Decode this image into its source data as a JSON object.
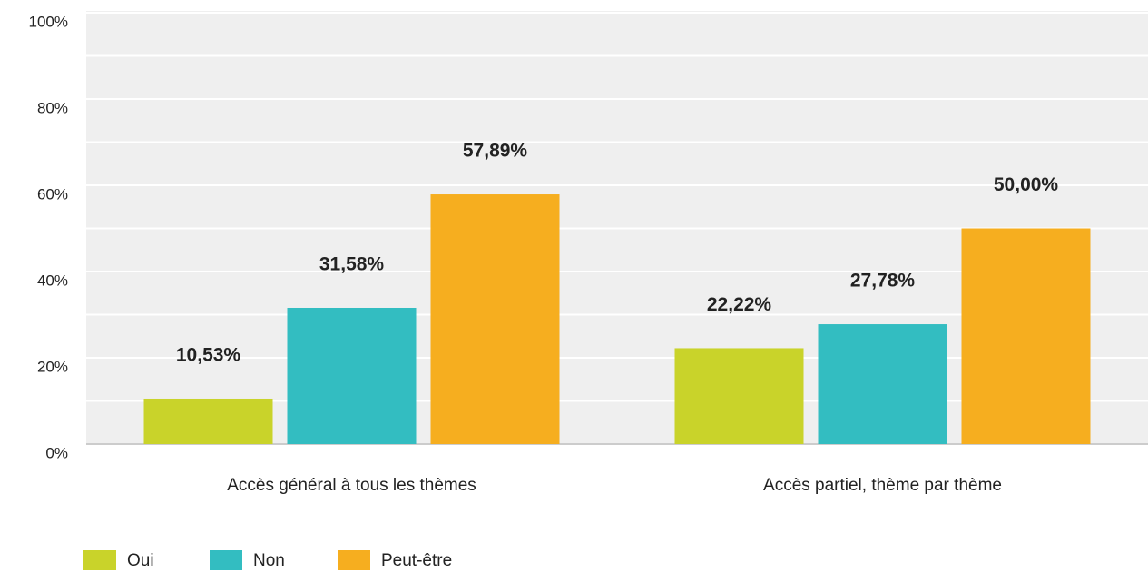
{
  "chart_data": {
    "type": "bar",
    "categories": [
      "Accès général à tous les thèmes",
      "Accès partiel, thème par thème"
    ],
    "series": [
      {
        "name": "Oui",
        "color": "#c9d32a",
        "values": [
          10.53,
          22.22
        ],
        "value_labels": [
          "10,53%",
          "22,22%"
        ]
      },
      {
        "name": "Non",
        "color": "#33bdc1",
        "values": [
          31.58,
          27.78
        ],
        "value_labels": [
          "31,58%",
          "27,78%"
        ]
      },
      {
        "name": "Peut-être",
        "color": "#f6ae1f",
        "values": [
          57.89,
          50.0
        ],
        "value_labels": [
          "57,89%",
          "50,00%"
        ]
      }
    ],
    "ylim": [
      0,
      100
    ],
    "yticks": [
      {
        "value": 0,
        "label": "0%"
      },
      {
        "value": 20,
        "label": "20%"
      },
      {
        "value": 40,
        "label": "40%"
      },
      {
        "value": 60,
        "label": "60%"
      },
      {
        "value": 80,
        "label": "80%"
      },
      {
        "value": 100,
        "label": "100%"
      }
    ],
    "yticks_minor": [
      10,
      30,
      50,
      70,
      90
    ],
    "grid": true,
    "legend": "bottom-left"
  }
}
